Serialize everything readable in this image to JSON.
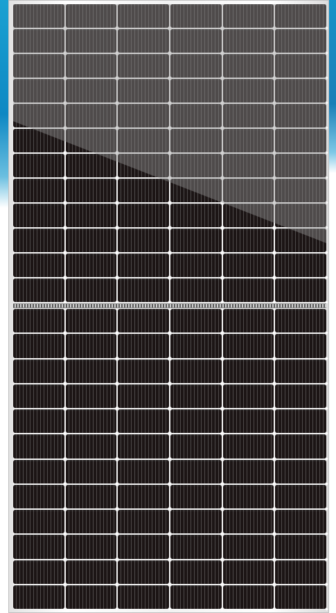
{
  "image": {
    "subject": "solar-panel",
    "colors": {
      "background_blue": "#1aa1d2",
      "frame": "#f2f2f2",
      "cell": "#1c1515",
      "reflection": "#969696"
    },
    "cells": {
      "columns": 6,
      "rows_per_half": 12,
      "halves": 2
    }
  }
}
